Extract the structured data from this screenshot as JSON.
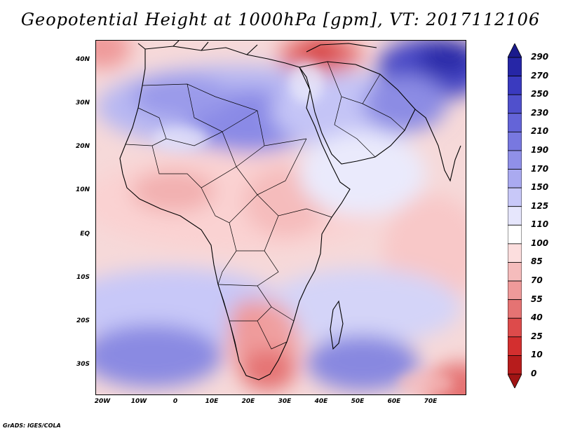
{
  "title": "Geopotential Height at 1000hPa [gpm], VT: 2017112106",
  "credit": "GrADS: IGES/COLA",
  "map": {
    "y_ticks": [
      "40N",
      "30N",
      "20N",
      "10N",
      "EQ",
      "10S",
      "20S",
      "30S"
    ],
    "x_ticks": [
      "20W",
      "10W",
      "0",
      "10E",
      "20E",
      "30E",
      "40E",
      "50E",
      "60E",
      "70E"
    ]
  },
  "colorbar": {
    "labels": [
      "290",
      "270",
      "250",
      "230",
      "210",
      "190",
      "170",
      "150",
      "125",
      "110",
      "100",
      "85",
      "70",
      "55",
      "40",
      "25",
      "10",
      "0"
    ],
    "colors": [
      "#1a1a8c",
      "#2626a6",
      "#3a3abf",
      "#5050cc",
      "#6464d8",
      "#7878e0",
      "#9090e8",
      "#aaaaf0",
      "#c8c8f8",
      "#e6e6fc",
      "#ffffff",
      "#fcdede",
      "#f5bcbc",
      "#ef9a9a",
      "#e57373",
      "#dd4b4b",
      "#d32f2f",
      "#b71c1c",
      "#a01414"
    ]
  }
}
